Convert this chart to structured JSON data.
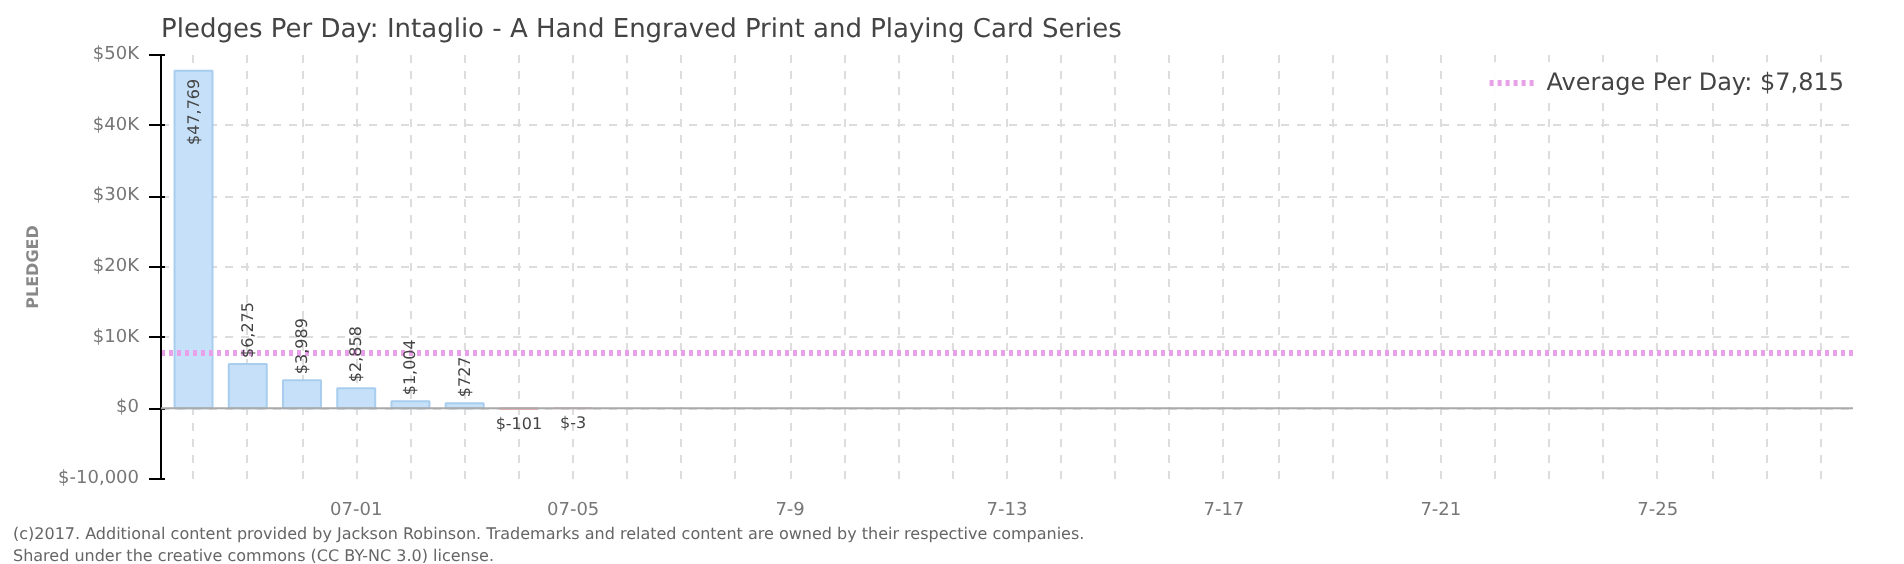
{
  "chart_data": {
    "type": "bar",
    "title": "Pledges Per Day: Intaglio - A Hand Engraved Print and Playing Card Series",
    "ylabel": "PLEDGED",
    "categories": [
      null,
      null,
      null,
      "07-01",
      null,
      null,
      null,
      "07-05",
      null,
      null,
      null,
      "7-9",
      null,
      null,
      null,
      "7-13",
      null,
      null,
      null,
      "7-17",
      null,
      null,
      null,
      "7-21",
      null,
      null,
      null,
      "7-25",
      null,
      null,
      null
    ],
    "values": [
      47769,
      6275,
      3989,
      2858,
      1004,
      727,
      -101,
      -3,
      null,
      null,
      null,
      null,
      null,
      null,
      null,
      null,
      null,
      null,
      null,
      null,
      null,
      null,
      null,
      null,
      null,
      null,
      null,
      null,
      null,
      null,
      null
    ],
    "colors": [
      "#c5e0f8",
      "#c5e0f8",
      "#c5e0f8",
      "#c5e0f8",
      "#c5e0f8",
      "#c5e0f8",
      "#f8c5c5",
      "#f8c5c5",
      null,
      null,
      null,
      null,
      null,
      null,
      null,
      null,
      null,
      null,
      null,
      null,
      null,
      null,
      null,
      null,
      null,
      null,
      null,
      null,
      null,
      null,
      null
    ],
    "value_labels": [
      "$47,769",
      "$6,275",
      "$3,989",
      "$2,858",
      "$1,004",
      "$727",
      "$-101",
      "$-3",
      null,
      null,
      null,
      null,
      null,
      null,
      null,
      null,
      null,
      null,
      null,
      null,
      null,
      null,
      null,
      null,
      null,
      null,
      null,
      null,
      null,
      null,
      null
    ],
    "ylim": [
      -10000,
      50000
    ],
    "yticks": [
      {
        "value": -10000,
        "label": "$-10,000"
      },
      {
        "value": 0,
        "label": "$0"
      },
      {
        "value": 10000,
        "label": "$10K"
      },
      {
        "value": 20000,
        "label": "$20K"
      },
      {
        "value": 30000,
        "label": "$30K"
      },
      {
        "value": 40000,
        "label": "$40K"
      },
      {
        "value": 50000,
        "label": "$50K"
      }
    ],
    "ref_lines": [
      {
        "axis": "y",
        "value": 7815,
        "label": "Average Per Day: $7,815",
        "color": "#e8a0e8",
        "line_style": "dotted"
      }
    ],
    "grid": true,
    "annotations": [
      "(c)2017. Additional content provided by Jackson Robinson. Trademarks and related content are owned by their respective companies.",
      "Shared under the creative commons (CC BY-NC 3.0) license."
    ]
  }
}
